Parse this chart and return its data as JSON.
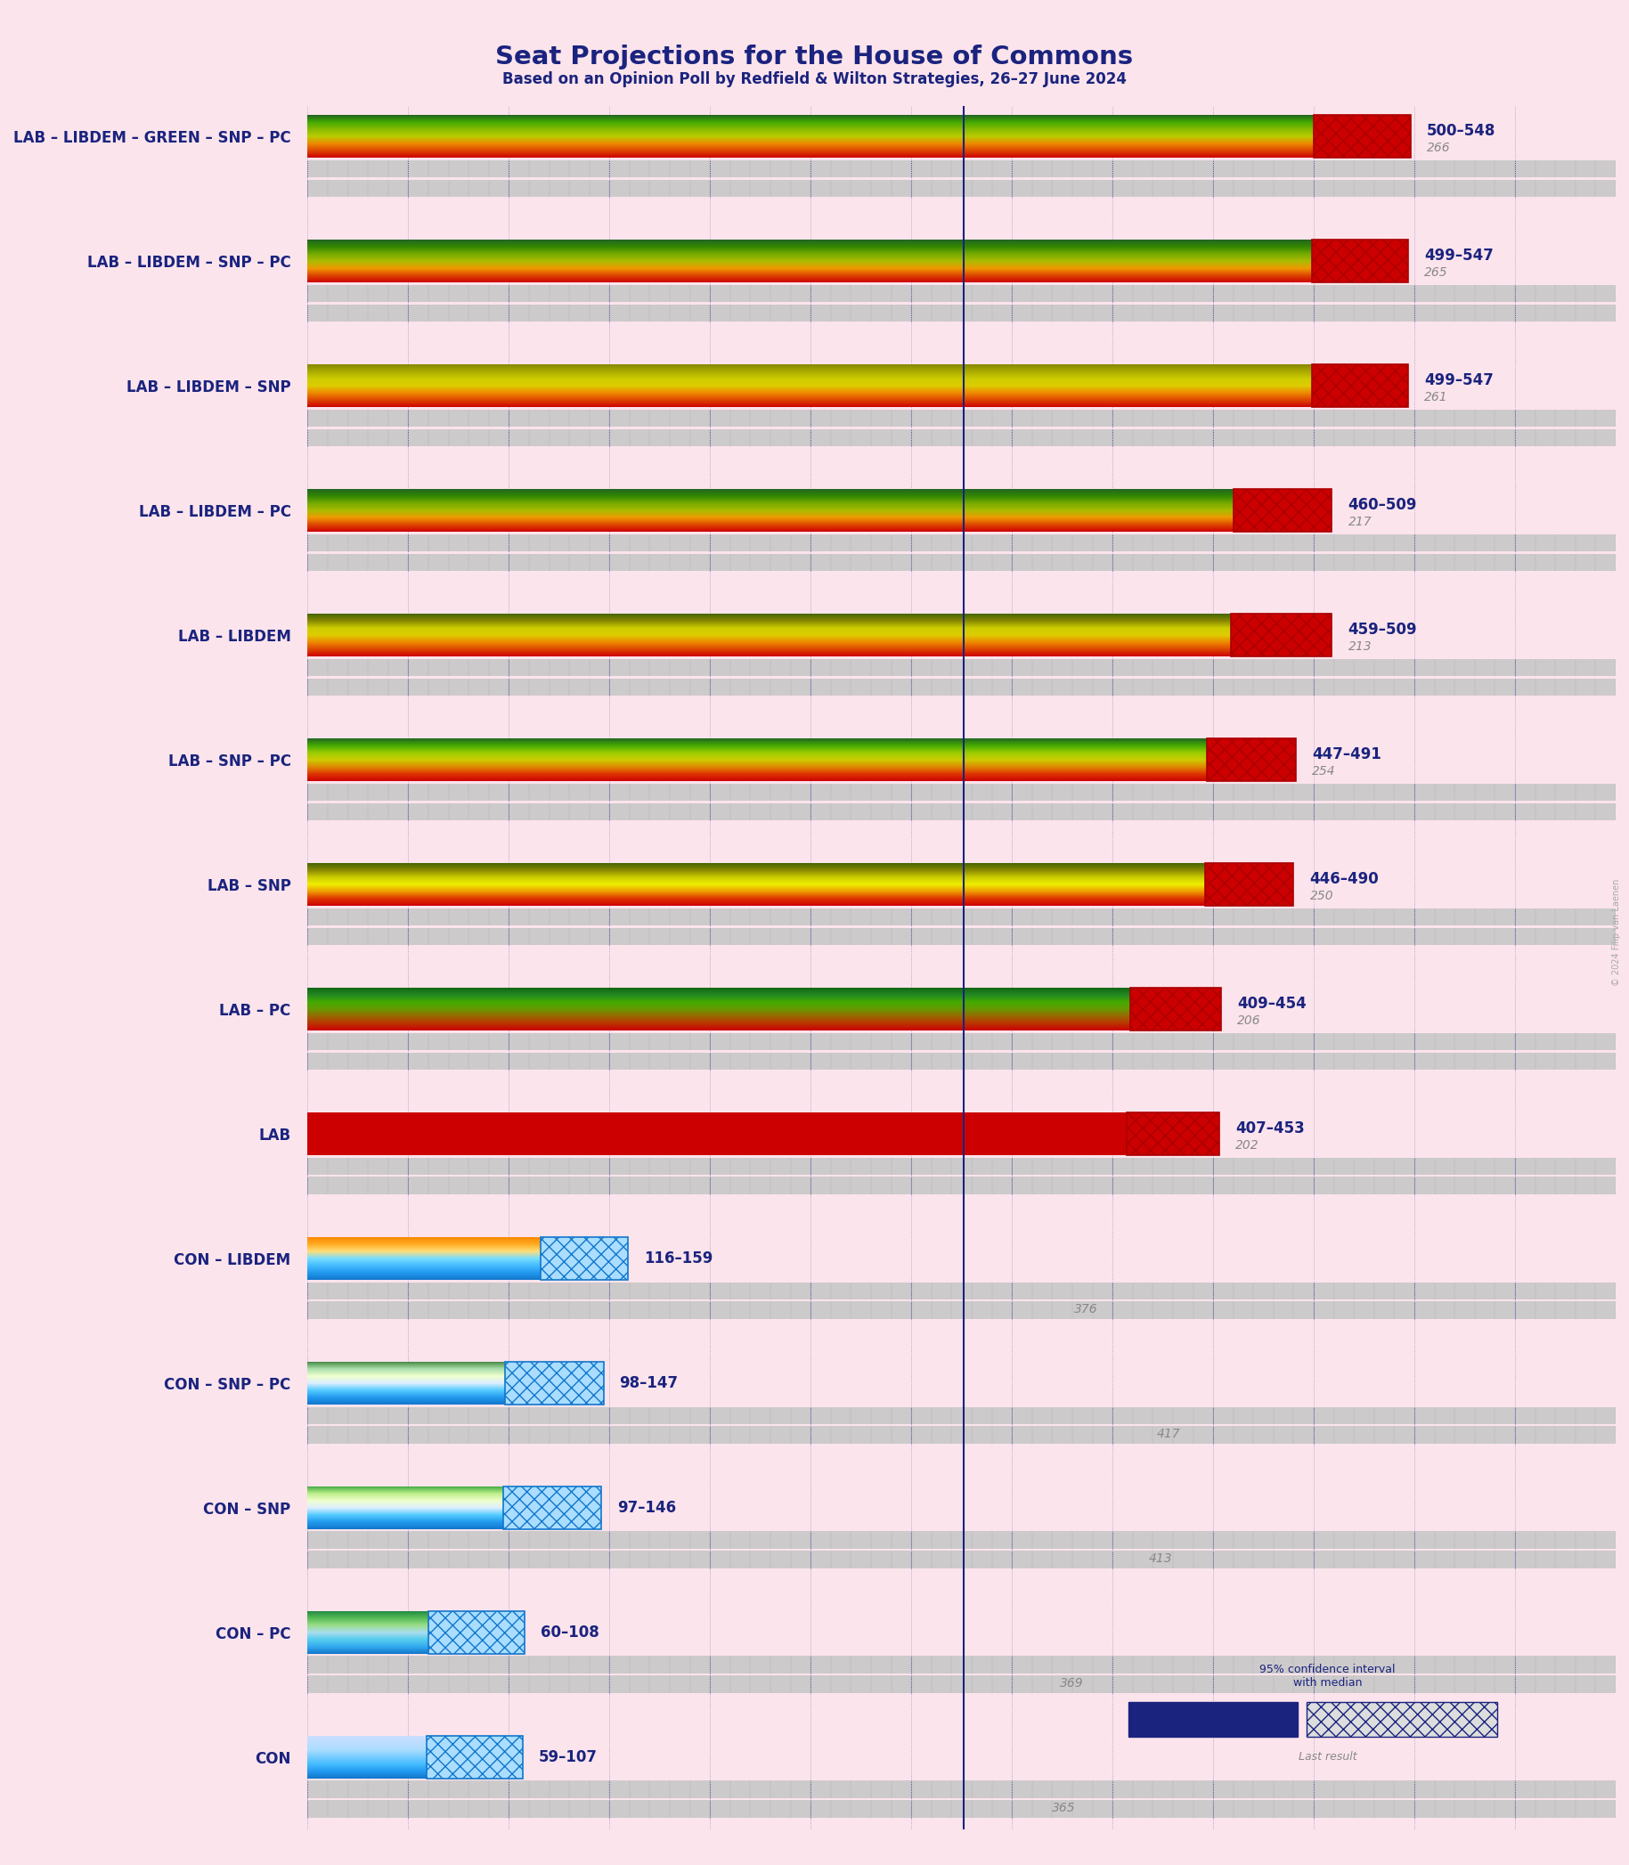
{
  "title": "Seat Projections for the House of Commons",
  "subtitle": "Based on an Opinion Poll by Redfield & Wilton Strategies, 26–27 June 2024",
  "background_color": "#fce4ec",
  "title_color": "#1a237e",
  "subtitle_color": "#1a237e",
  "copyright": "© 2024 Filip van Laenen",
  "majority_line": 326,
  "x_max": 650,
  "coalitions": [
    {
      "name": "LAB – LIBDEM – GREEN – SNP – PC",
      "low": 500,
      "high": 548,
      "median": 266,
      "last_result": null,
      "type": "lab"
    },
    {
      "name": "LAB – LIBDEM – SNP – PC",
      "low": 499,
      "high": 547,
      "median": 265,
      "last_result": null,
      "type": "lab"
    },
    {
      "name": "LAB – LIBDEM – SNP",
      "low": 499,
      "high": 547,
      "median": 261,
      "last_result": null,
      "type": "lab"
    },
    {
      "name": "LAB – LIBDEM – PC",
      "low": 460,
      "high": 509,
      "median": 217,
      "last_result": null,
      "type": "lab"
    },
    {
      "name": "LAB – LIBDEM",
      "low": 459,
      "high": 509,
      "median": 213,
      "last_result": null,
      "type": "lab"
    },
    {
      "name": "LAB – SNP – PC",
      "low": 447,
      "high": 491,
      "median": 254,
      "last_result": null,
      "type": "lab"
    },
    {
      "name": "LAB – SNP",
      "low": 446,
      "high": 490,
      "median": 250,
      "last_result": null,
      "type": "lab"
    },
    {
      "name": "LAB – PC",
      "low": 409,
      "high": 454,
      "median": 206,
      "last_result": null,
      "type": "lab"
    },
    {
      "name": "LAB",
      "low": 407,
      "high": 453,
      "median": 202,
      "last_result": null,
      "type": "lab"
    },
    {
      "name": "CON – LIBDEM",
      "low": 116,
      "high": 159,
      "median": 376,
      "last_result": 376,
      "type": "con"
    },
    {
      "name": "CON – SNP – PC",
      "low": 98,
      "high": 147,
      "median": 417,
      "last_result": 417,
      "type": "con"
    },
    {
      "name": "CON – SNP",
      "low": 97,
      "high": 146,
      "median": 413,
      "last_result": 413,
      "type": "con"
    },
    {
      "name": "CON – PC",
      "low": 60,
      "high": 108,
      "median": 369,
      "last_result": 369,
      "type": "con"
    },
    {
      "name": "CON",
      "low": 59,
      "high": 107,
      "median": 365,
      "last_result": 365,
      "type": "con"
    }
  ],
  "lab_gradient": [
    "#cc0000",
    "#dd4400",
    "#ee8800",
    "#cccc00",
    "#aacc00",
    "#66aa00",
    "#338800"
  ],
  "con_gradient_top": [
    "#1177cc",
    "#33aadd",
    "#55ccee",
    "#aaddee",
    "#eeffcc",
    "#bbee88",
    "#44aa44"
  ],
  "con_gradient_bottom": [
    "#1177cc",
    "#33aadd",
    "#55ccee",
    "#eeffcc",
    "#bbdd66",
    "#44aa44",
    "#228822"
  ],
  "gray_ci_color": "#cccccc",
  "dotted_line_color": "#1a237e",
  "majority_line_color": "#1a237e"
}
